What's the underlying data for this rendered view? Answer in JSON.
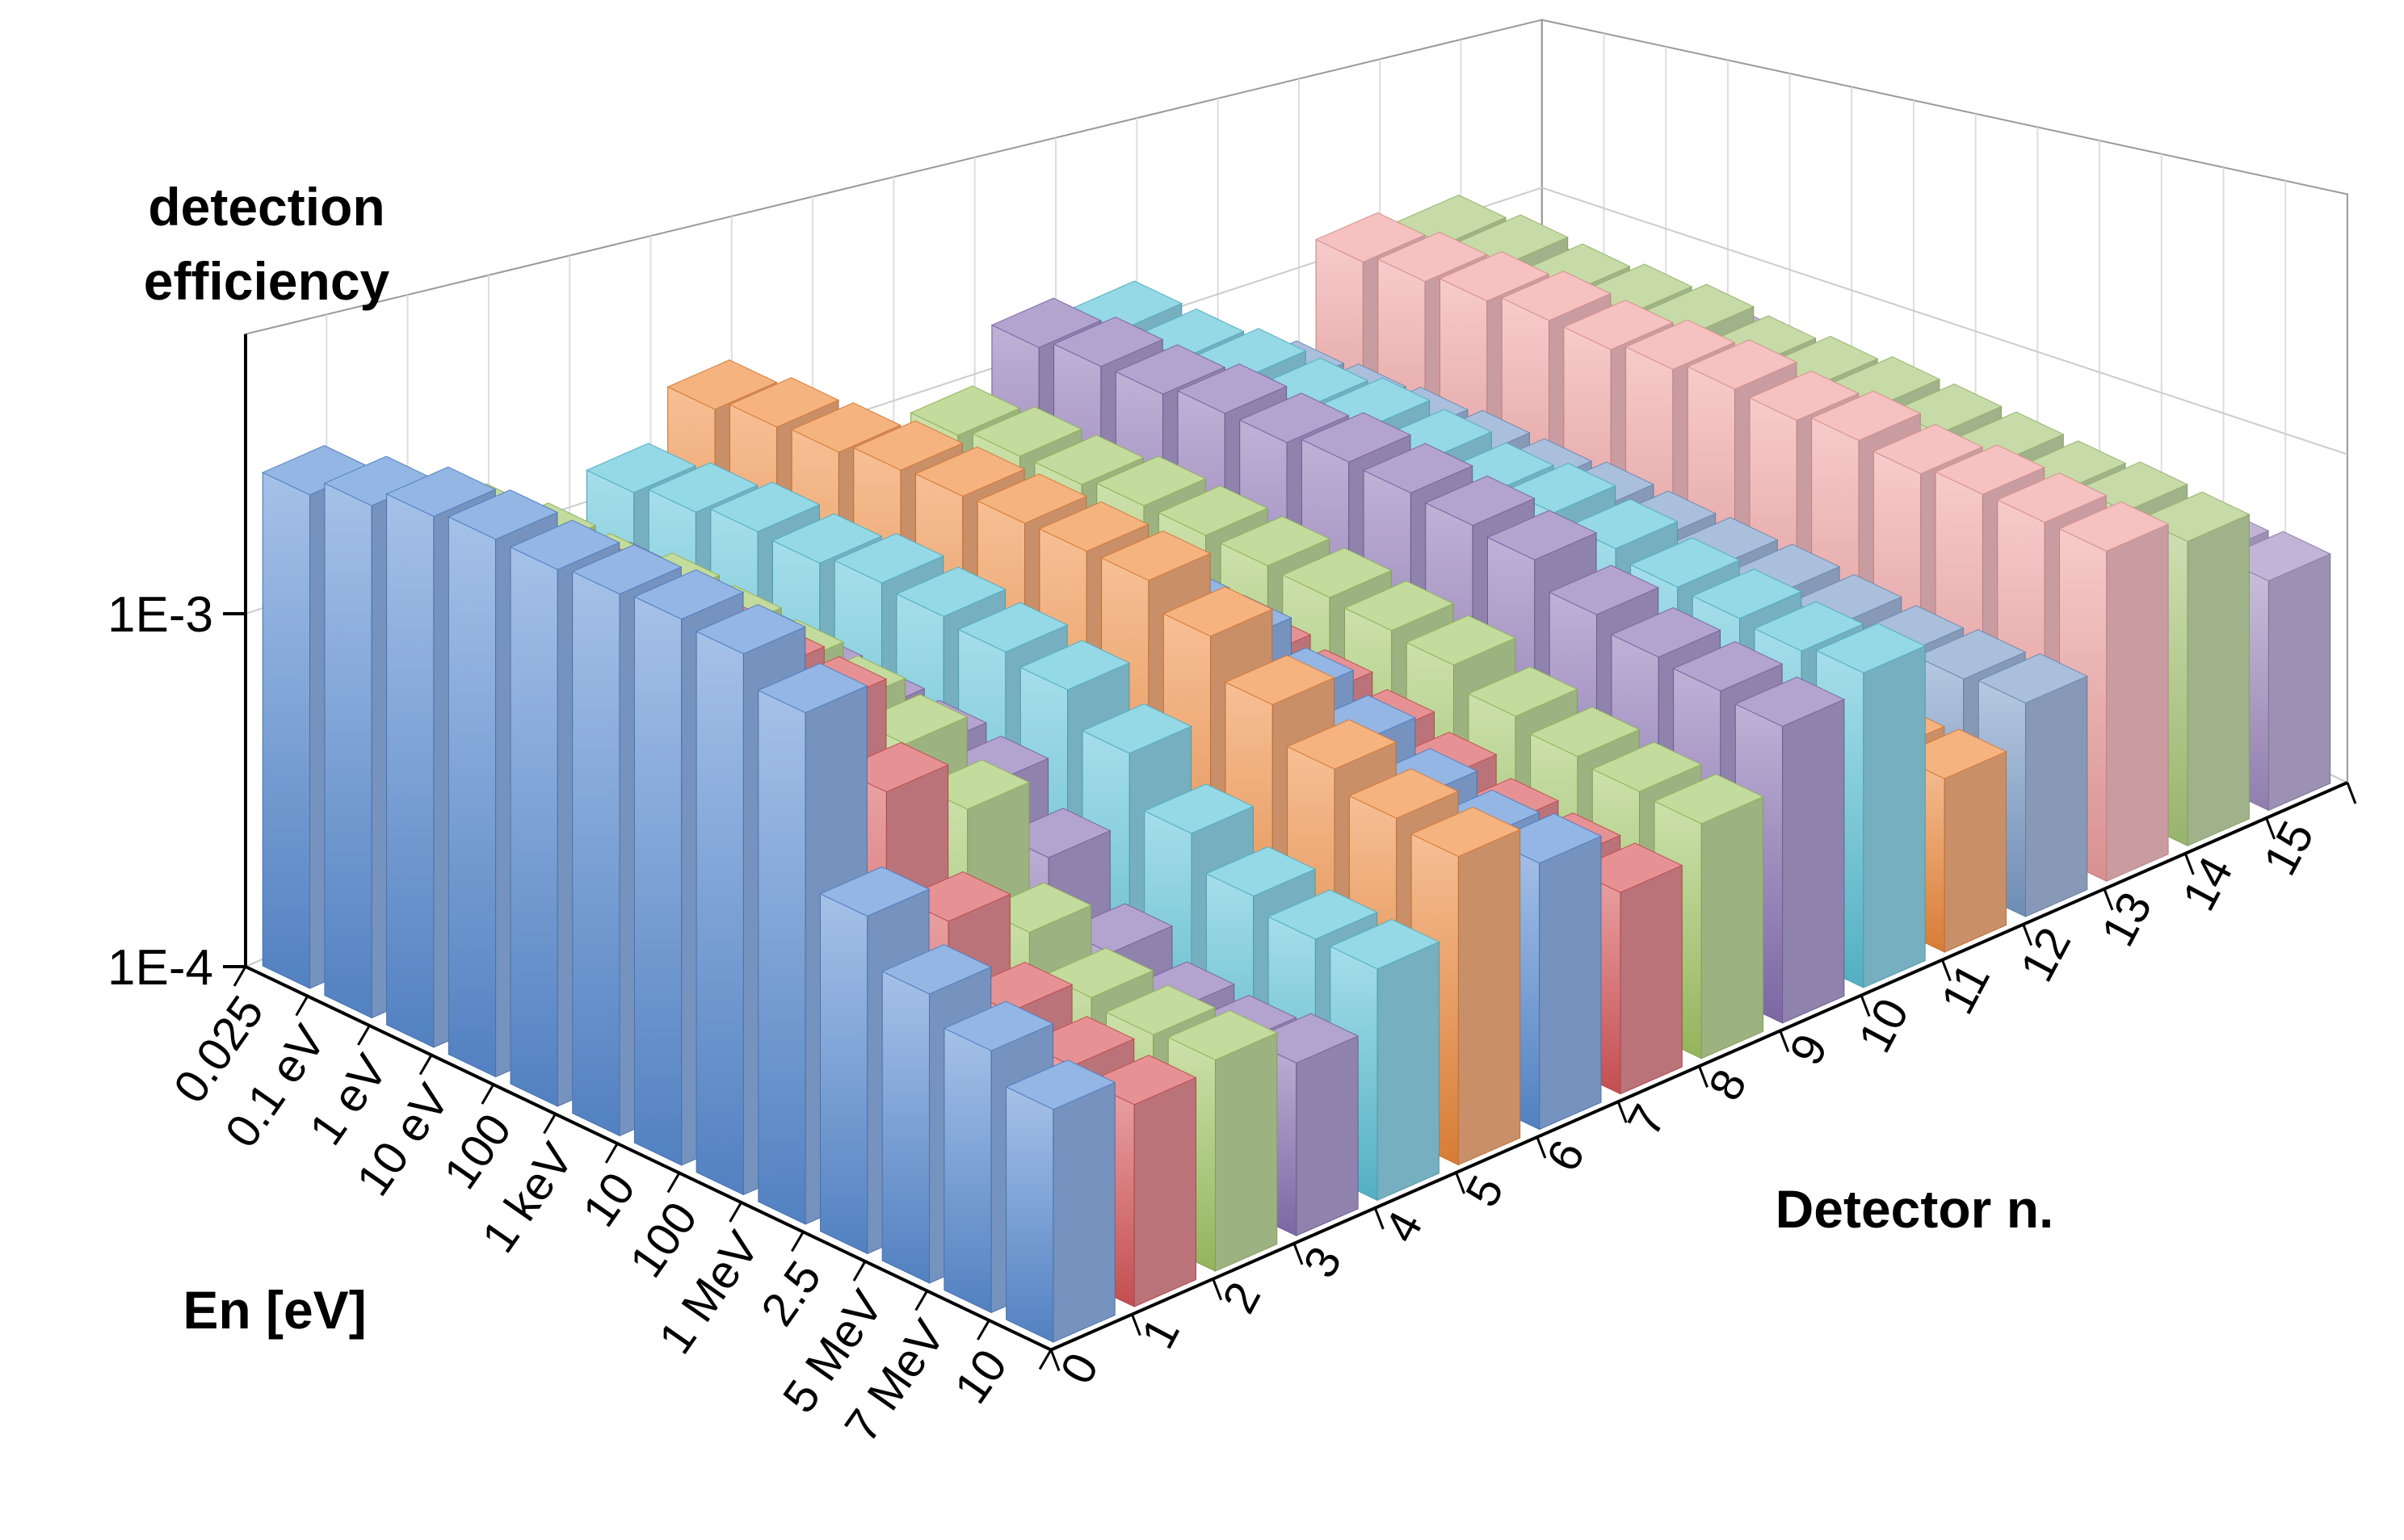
{
  "chart_data": {
    "type": "bar3d",
    "zlabel": "detection efficiency",
    "xlabel": "En [eV]",
    "ylabel": "Detector n.",
    "zscale": "log",
    "zlim": [
      0.0001,
      0.0062
    ],
    "zticks": [
      {
        "value": 0.0001,
        "label": "1E-4"
      },
      {
        "value": 0.001,
        "label": "1E-3"
      }
    ],
    "x": [
      "0.025",
      "0.1 eV",
      "1 eV",
      "10 eV",
      "100",
      "1 keV",
      "10",
      "100",
      "1 MeV",
      "2.5",
      "5 MeV",
      "7 MeV",
      "10"
    ],
    "series": [
      {
        "name": "0",
        "color": "#5b8fd6",
        "values": [
          0.0025,
          0.0026,
          0.0027,
          0.0026,
          0.0024,
          0.0023,
          0.0022,
          0.002,
          0.0016,
          0.0006,
          0.00045,
          0.00038,
          0.00032
        ]
      },
      {
        "name": "1",
        "color": "#d9575a",
        "values": [
          0.0018,
          0.0018,
          0.0017,
          0.0017,
          0.0016,
          0.0015,
          0.0014,
          0.0013,
          0.0009,
          0.0005,
          0.00035,
          0.0003,
          0.00028
        ]
      },
      {
        "name": "2",
        "color": "#a3c867",
        "values": [
          0.0014,
          0.0014,
          0.0013,
          0.0013,
          0.0012,
          0.0011,
          0.001,
          0.0009,
          0.0007,
          0.0004,
          0.00032,
          0.0003,
          0.0003
        ]
      },
      {
        "name": "3",
        "color": "#8a72b5",
        "values": [
          0.0009,
          0.0009,
          0.00085,
          0.0008,
          0.00075,
          0.0007,
          0.00065,
          0.0006,
          0.00045,
          0.0003,
          0.00025,
          0.00024,
          0.00025
        ]
      },
      {
        "name": "4",
        "color": "#5cc3d8",
        "values": [
          0.0013,
          0.0013,
          0.0013,
          0.0012,
          0.0012,
          0.0011,
          0.001,
          0.0009,
          0.0007,
          0.0005,
          0.0004,
          0.00036,
          0.00035
        ]
      },
      {
        "name": "5",
        "color": "#f08a3c",
        "values": [
          0.002,
          0.002,
          0.0019,
          0.0019,
          0.0018,
          0.0017,
          0.0016,
          0.0015,
          0.0012,
          0.0009,
          0.0007,
          0.0006,
          0.00055
        ]
      },
      {
        "name": "6",
        "color": "#5b8fd6",
        "values": [
          0.0012,
          0.0012,
          0.0011,
          0.0011,
          0.001,
          0.001,
          0.0009,
          0.00085,
          0.0007,
          0.0006,
          0.0005,
          0.00045,
          0.00045
        ]
      },
      {
        "name": "7",
        "color": "#d9575a",
        "values": [
          0.0007,
          0.0007,
          0.00065,
          0.00065,
          0.0006,
          0.0006,
          0.00055,
          0.0005,
          0.00045,
          0.0004,
          0.00035,
          0.00033,
          0.00032
        ]
      },
      {
        "name": "8",
        "color": "#a3c867",
        "values": [
          0.0009,
          0.0009,
          0.00085,
          0.00085,
          0.0008,
          0.00075,
          0.0007,
          0.00065,
          0.0006,
          0.0005,
          0.00045,
          0.00042,
          0.0004
        ]
      },
      {
        "name": "9",
        "color": "#8a72b5",
        "values": [
          0.0015,
          0.0015,
          0.0014,
          0.0014,
          0.0013,
          0.0013,
          0.0012,
          0.0011,
          0.001,
          0.0008,
          0.0007,
          0.00065,
          0.0006
        ]
      },
      {
        "name": "10",
        "color": "#5cc3d8",
        "values": [
          0.0014,
          0.0013,
          0.0013,
          0.0012,
          0.0012,
          0.0011,
          0.001,
          0.001,
          0.0009,
          0.0008,
          0.00075,
          0.0007,
          0.0007
        ]
      },
      {
        "name": "11",
        "color": "#f08a3c",
        "values": [
          0.0005,
          0.0005,
          0.0005,
          0.00048,
          0.00046,
          0.00045,
          0.00043,
          0.00042,
          0.0004,
          0.00035,
          0.00032,
          0.0003,
          0.0003
        ]
      },
      {
        "name": "12",
        "color": "#7a9cc8",
        "values": [
          0.0005,
          0.0005,
          0.0005,
          0.0005,
          0.00048,
          0.00048,
          0.00046,
          0.00045,
          0.00044,
          0.00042,
          0.0004,
          0.0004,
          0.0004
        ]
      },
      {
        "name": "13",
        "color": "#f0a0a0",
        "values": [
          0.0013,
          0.0013,
          0.0013,
          0.0013,
          0.0012,
          0.0012,
          0.0012,
          0.0011,
          0.0011,
          0.001,
          0.001,
          0.00095,
          0.0009
        ]
      },
      {
        "name": "14",
        "color": "#a8c878",
        "values": [
          0.0012,
          0.0012,
          0.0011,
          0.0011,
          0.0011,
          0.001,
          0.001,
          0.001,
          0.00095,
          0.0009,
          0.00085,
          0.00085,
          0.0008
        ]
      },
      {
        "name": "15",
        "color": "#a08cc0",
        "values": [
          0.0006,
          0.0006,
          0.0006,
          0.0006,
          0.00055,
          0.00055,
          0.00055,
          0.0005,
          0.0005,
          0.0005,
          0.0005,
          0.0005,
          0.0005
        ]
      }
    ]
  }
}
